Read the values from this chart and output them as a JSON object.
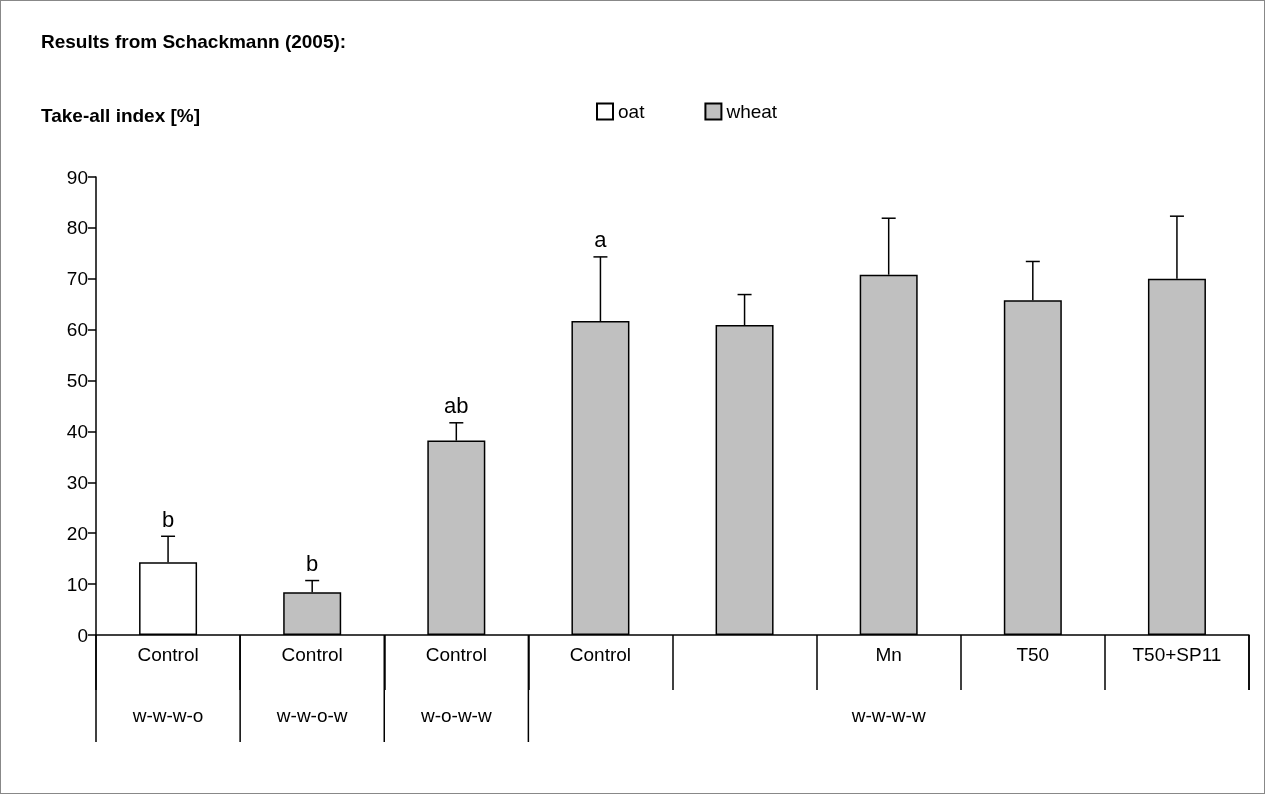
{
  "chart_data": {
    "type": "bar",
    "title": "Results from Schackmann (2005):",
    "ylabel": "Take-all index [%]",
    "categories": [
      "Control",
      "Control",
      "Control",
      "Control",
      null,
      "Mn",
      "T50",
      "T50+SP11"
    ],
    "series": [
      {
        "name": "oat",
        "color": "#ffffff",
        "values": [
          14.3,
          null,
          null,
          null,
          null,
          null,
          null,
          null
        ],
        "errors": [
          5.1,
          null,
          null,
          null,
          null,
          null,
          null,
          null
        ],
        "value_labels": [
          "b",
          null,
          null,
          null,
          null,
          null,
          null,
          null
        ]
      },
      {
        "name": "wheat",
        "color": "#c0c0c0",
        "values": [
          null,
          8.4,
          38.2,
          61.7,
          60.9,
          70.8,
          65.8,
          70.0
        ],
        "errors": [
          null,
          2.3,
          3.5,
          12.6,
          6.0,
          11.1,
          7.6,
          12.3
        ],
        "value_labels": [
          null,
          "b",
          "ab",
          "a",
          null,
          null,
          null,
          null
        ]
      }
    ],
    "annotations": [
      "w-w-w-o",
      "w-w-o-w",
      "w-o-w-w",
      "w-w-w-w"
    ],
    "ylim": [
      0,
      90
    ],
    "yticks": [
      0,
      10,
      20,
      30,
      40,
      50,
      60,
      70,
      80,
      90
    ],
    "grid": false,
    "legend": "top"
  }
}
